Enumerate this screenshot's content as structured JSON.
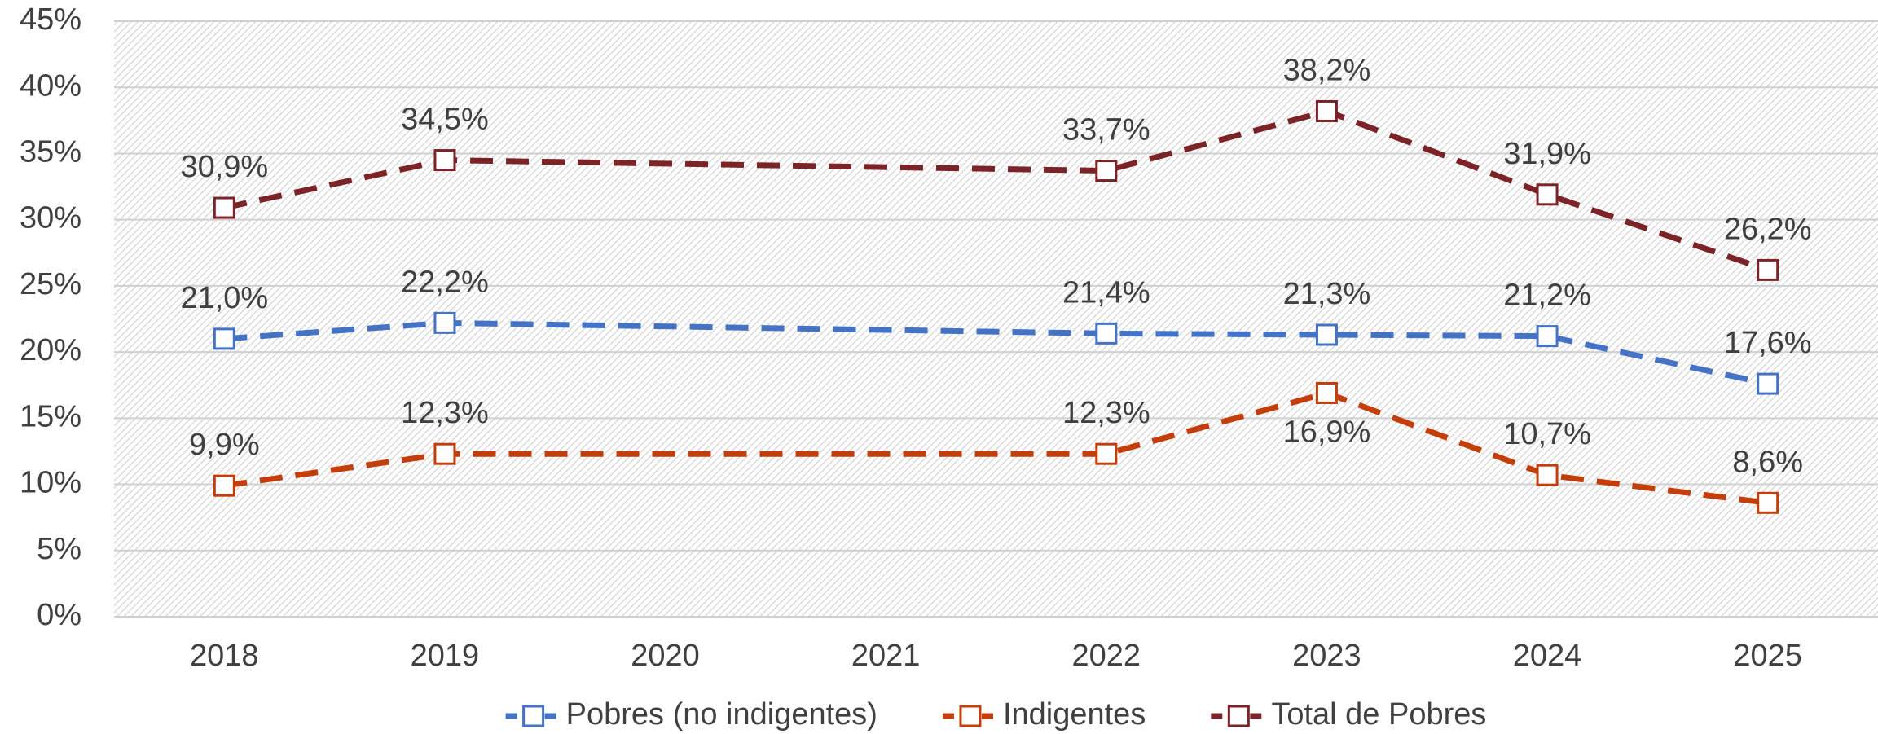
{
  "chart_data": {
    "type": "line",
    "xlim": [
      2017.5,
      2025.5
    ],
    "xticks": [
      2018,
      2019,
      2020,
      2021,
      2022,
      2023,
      2024,
      2025
    ],
    "ylim": [
      0,
      45
    ],
    "yticks": [
      {
        "value": 0,
        "label": "0%"
      },
      {
        "value": 5,
        "label": "5%"
      },
      {
        "value": 10,
        "label": "10%"
      },
      {
        "value": 15,
        "label": "15%"
      },
      {
        "value": 20,
        "label": "20%"
      },
      {
        "value": 25,
        "label": "25%"
      },
      {
        "value": 30,
        "label": "30%"
      },
      {
        "value": 35,
        "label": "35%"
      },
      {
        "value": 40,
        "label": "40%"
      },
      {
        "value": 45,
        "label": "45%"
      }
    ],
    "grid": true,
    "legend": "bottom",
    "series": [
      {
        "name": "Pobres (no indigentes)",
        "color": "#4472c4",
        "x": [
          2018,
          2019,
          2022,
          2023,
          2024,
          2025
        ],
        "values": [
          21.0,
          22.2,
          21.4,
          21.3,
          21.2,
          17.6
        ],
        "value_labels": [
          "21,0%",
          "22,2%",
          "21,4%",
          "21,3%",
          "21,2%",
          "17,6%"
        ]
      },
      {
        "name": "Indigentes",
        "color": "#c43e0b",
        "x": [
          2018,
          2019,
          2022,
          2023,
          2024,
          2025
        ],
        "values": [
          9.9,
          12.3,
          12.3,
          16.9,
          10.7,
          8.6
        ],
        "value_labels": [
          "9,9%",
          "12,3%",
          "12,3%",
          "16,9%",
          "10,7%",
          "8,6%"
        ]
      },
      {
        "name": "Total de Pobres",
        "color": "#7b2327",
        "x": [
          2018,
          2019,
          2022,
          2023,
          2024,
          2025
        ],
        "values": [
          30.9,
          34.5,
          33.7,
          38.2,
          31.9,
          26.2
        ],
        "value_labels": [
          "30,9%",
          "34,5%",
          "33,7%",
          "38,2%",
          "31,9%",
          "26,2%"
        ]
      }
    ]
  }
}
